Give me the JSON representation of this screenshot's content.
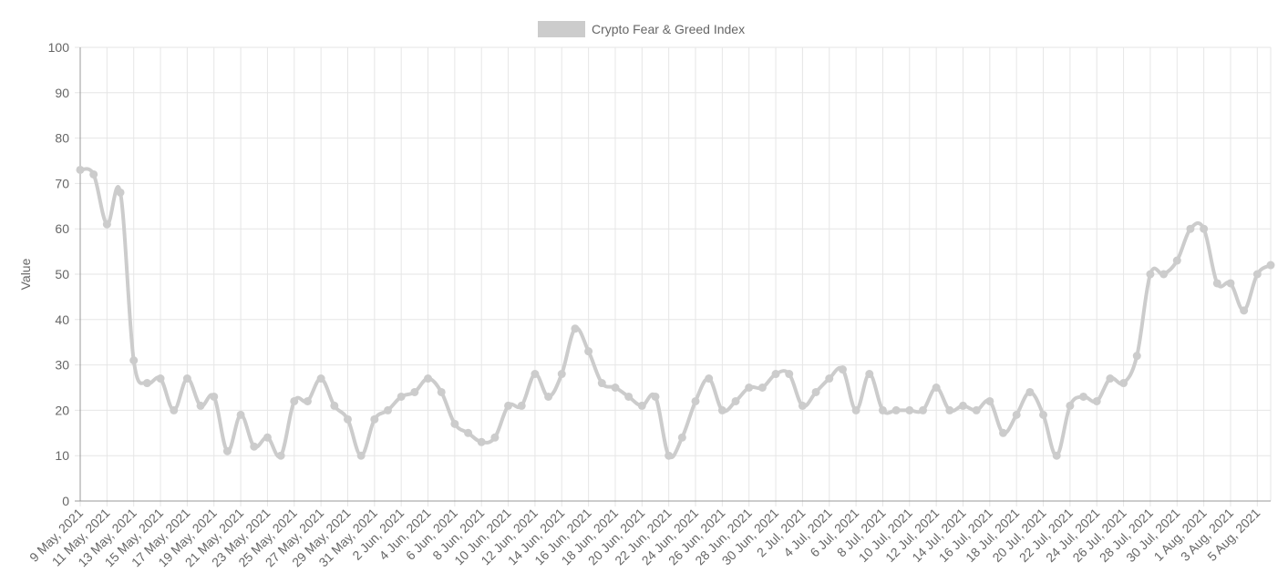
{
  "chart_data": {
    "type": "line",
    "legend": {
      "label": "Crypto Fear & Greed Index",
      "placement": "top-center"
    },
    "ylabel": "Value",
    "ylim": [
      0,
      100
    ],
    "yticks": [
      0,
      10,
      20,
      30,
      40,
      50,
      60,
      70,
      80,
      90,
      100
    ],
    "grid": true,
    "colors": {
      "line": "#cccccc",
      "grid": "#e6e6e6",
      "axis": "#666666",
      "text": "#666666"
    },
    "x": [
      "9 May, 2021",
      "10 May, 2021",
      "11 May, 2021",
      "12 May, 2021",
      "13 May, 2021",
      "14 May, 2021",
      "15 May, 2021",
      "16 May, 2021",
      "17 May, 2021",
      "18 May, 2021",
      "19 May, 2021",
      "20 May, 2021",
      "21 May, 2021",
      "22 May, 2021",
      "23 May, 2021",
      "24 May, 2021",
      "25 May, 2021",
      "26 May, 2021",
      "27 May, 2021",
      "28 May, 2021",
      "29 May, 2021",
      "30 May, 2021",
      "31 May, 2021",
      "1 Jun, 2021",
      "2 Jun, 2021",
      "3 Jun, 2021",
      "4 Jun, 2021",
      "5 Jun, 2021",
      "6 Jun, 2021",
      "7 Jun, 2021",
      "8 Jun, 2021",
      "9 Jun, 2021",
      "10 Jun, 2021",
      "11 Jun, 2021",
      "12 Jun, 2021",
      "13 Jun, 2021",
      "14 Jun, 2021",
      "15 Jun, 2021",
      "16 Jun, 2021",
      "17 Jun, 2021",
      "18 Jun, 2021",
      "19 Jun, 2021",
      "20 Jun, 2021",
      "21 Jun, 2021",
      "22 Jun, 2021",
      "23 Jun, 2021",
      "24 Jun, 2021",
      "25 Jun, 2021",
      "26 Jun, 2021",
      "27 Jun, 2021",
      "28 Jun, 2021",
      "29 Jun, 2021",
      "30 Jun, 2021",
      "1 Jul, 2021",
      "2 Jul, 2021",
      "3 Jul, 2021",
      "4 Jul, 2021",
      "5 Jul, 2021",
      "6 Jul, 2021",
      "7 Jul, 2021",
      "8 Jul, 2021",
      "9 Jul, 2021",
      "10 Jul, 2021",
      "11 Jul, 2021",
      "12 Jul, 2021",
      "13 Jul, 2021",
      "14 Jul, 2021",
      "15 Jul, 2021",
      "16 Jul, 2021",
      "17 Jul, 2021",
      "18 Jul, 2021",
      "19 Jul, 2021",
      "20 Jul, 2021",
      "21 Jul, 2021",
      "22 Jul, 2021",
      "23 Jul, 2021",
      "24 Jul, 2021",
      "25 Jul, 2021",
      "26 Jul, 2021",
      "27 Jul, 2021",
      "28 Jul, 2021",
      "29 Jul, 2021",
      "30 Jul, 2021",
      "31 Jul, 2021",
      "1 Aug, 2021",
      "2 Aug, 2021",
      "3 Aug, 2021",
      "4 Aug, 2021",
      "5 Aug, 2021",
      "6 Aug, 2021"
    ],
    "series": [
      {
        "name": "Crypto Fear & Greed Index",
        "values": [
          73,
          72,
          61,
          68,
          31,
          26,
          27,
          20,
          27,
          21,
          23,
          11,
          19,
          12,
          14,
          10,
          22,
          22,
          27,
          21,
          18,
          10,
          18,
          20,
          23,
          24,
          27,
          24,
          17,
          15,
          13,
          14,
          21,
          21,
          28,
          23,
          28,
          38,
          33,
          26,
          25,
          23,
          21,
          23,
          10,
          14,
          22,
          27,
          20,
          22,
          25,
          25,
          28,
          28,
          21,
          24,
          27,
          29,
          20,
          28,
          20,
          20,
          20,
          20,
          25,
          20,
          21,
          20,
          22,
          15,
          19,
          24,
          19,
          10,
          21,
          23,
          22,
          27,
          26,
          32,
          50,
          50,
          53,
          60,
          60,
          48,
          48,
          42,
          50,
          52
        ]
      }
    ]
  }
}
